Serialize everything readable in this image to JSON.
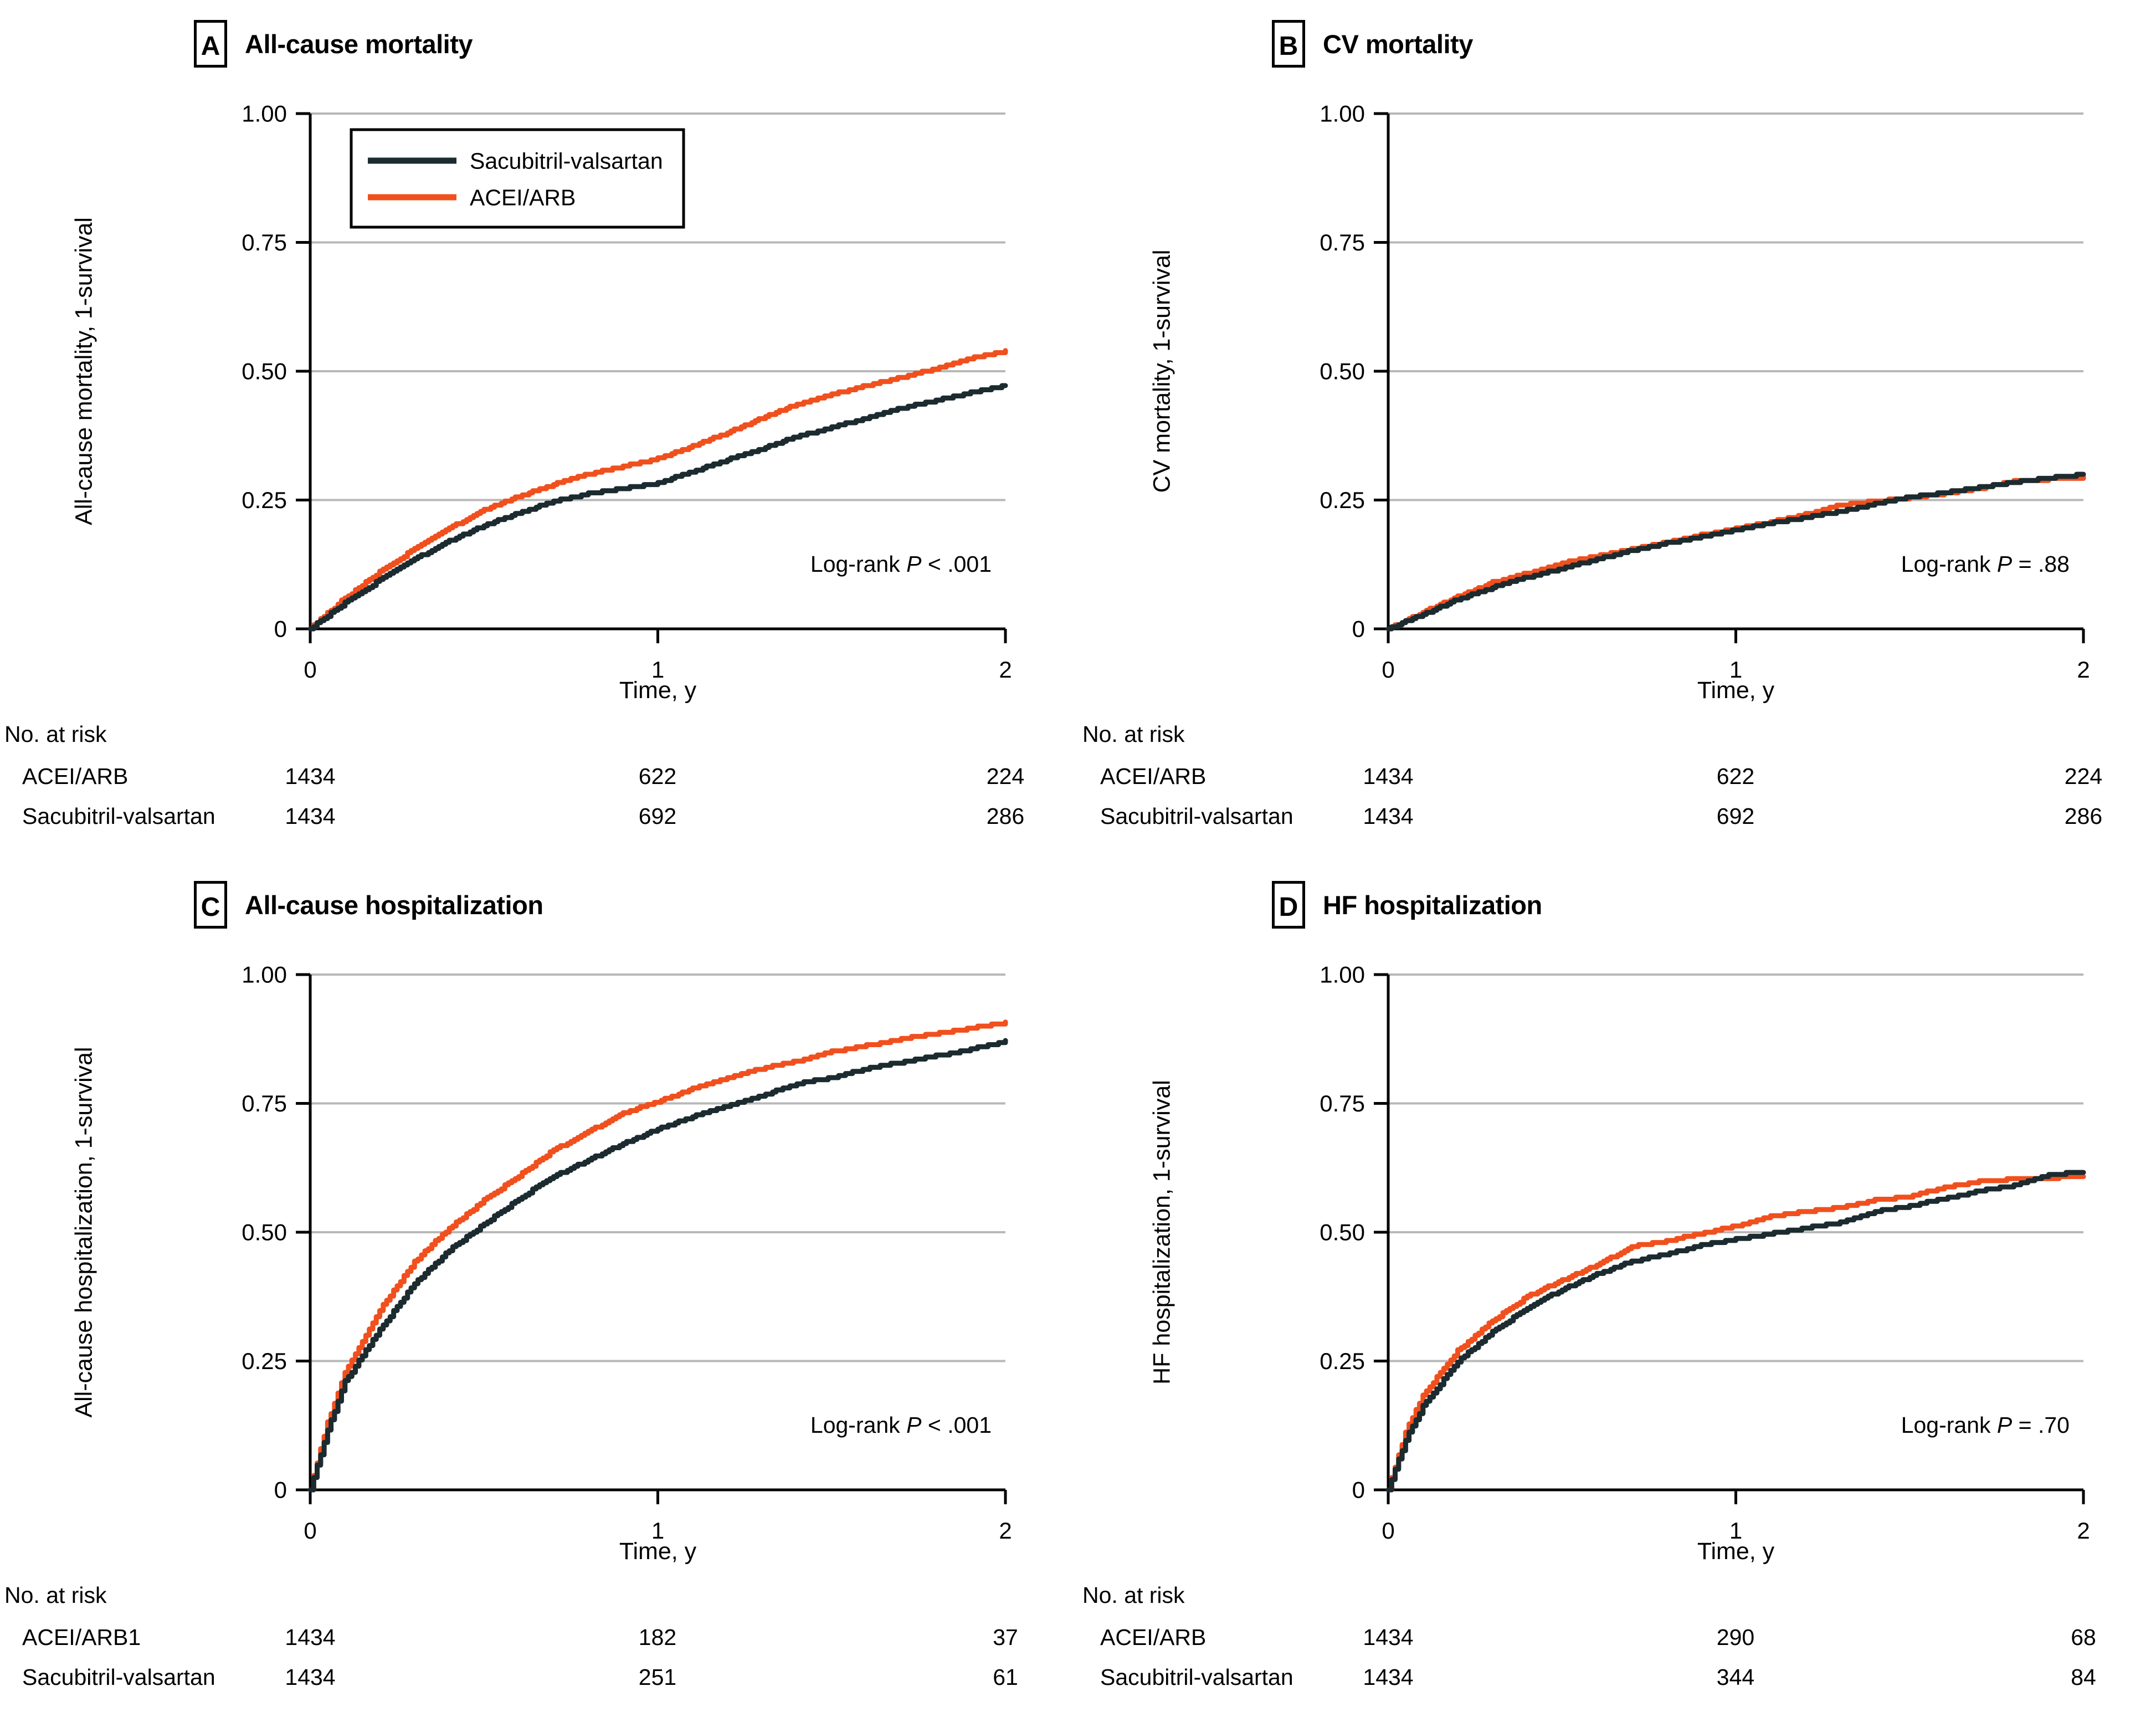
{
  "figure": {
    "background": "#ffffff",
    "colors": {
      "sacubitril": "#1b2b30",
      "acei_arb": "#f0501e",
      "grid": "#b8b8b8",
      "axis": "#000000"
    },
    "legend": {
      "items": [
        {
          "label": "Sacubitril-valsartan",
          "color": "sacubitril"
        },
        {
          "label": "ACEI/ARB",
          "color": "acei_arb"
        }
      ]
    }
  },
  "chart_data": [
    {
      "panel": "A",
      "title": "All-cause mortality",
      "type": "line",
      "xlabel": "Time, y",
      "ylabel": "All-cause mortality, 1-survival",
      "xlim": [
        0,
        2
      ],
      "ylim": [
        0,
        1
      ],
      "grid": true,
      "legend_visible": true,
      "legend_position": "top-left",
      "xticks": [
        {
          "v": 0,
          "label": "0"
        },
        {
          "v": 1,
          "label": "1"
        },
        {
          "v": 2,
          "label": "2"
        }
      ],
      "yticks": [
        {
          "v": 1,
          "label": "1.00"
        },
        {
          "v": 0.75,
          "label": "0.75"
        },
        {
          "v": 0.5,
          "label": "0.50"
        },
        {
          "v": 0.25,
          "label": "0.25"
        },
        {
          "v": 0,
          "label": "0"
        }
      ],
      "logrank": {
        "prefix": "Log-rank ",
        "p": "P",
        "suffix": " < .001"
      },
      "series": [
        {
          "name": "ACEI/ARB",
          "color": "acei_arb",
          "x": [
            0,
            0.1,
            0.2,
            0.3,
            0.4,
            0.5,
            0.6,
            0.7,
            0.8,
            0.9,
            1,
            1.1,
            1.2,
            1.3,
            1.4,
            1.5,
            1.6,
            1.7,
            1.8,
            1.9,
            2
          ],
          "y": [
            0,
            0.06,
            0.11,
            0.155,
            0.195,
            0.23,
            0.257,
            0.28,
            0.3,
            0.315,
            0.33,
            0.355,
            0.38,
            0.41,
            0.435,
            0.455,
            0.472,
            0.488,
            0.505,
            0.525,
            0.538
          ]
        },
        {
          "name": "Sacubitril-valsartan",
          "color": "sacubitril",
          "x": [
            0,
            0.1,
            0.2,
            0.3,
            0.4,
            0.5,
            0.6,
            0.7,
            0.8,
            0.9,
            1,
            1.1,
            1.2,
            1.3,
            1.4,
            1.5,
            1.6,
            1.7,
            1.8,
            1.9,
            2
          ],
          "y": [
            0,
            0.05,
            0.095,
            0.135,
            0.17,
            0.2,
            0.225,
            0.247,
            0.262,
            0.272,
            0.283,
            0.305,
            0.328,
            0.35,
            0.373,
            0.39,
            0.41,
            0.428,
            0.443,
            0.458,
            0.472
          ]
        }
      ],
      "at_risk": {
        "header": "No. at risk",
        "rows": [
          [
            "ACEI/ARB",
            "1434",
            "622",
            "224"
          ],
          [
            "Sacubitril-valsartan",
            "1434",
            "692",
            "286"
          ]
        ]
      }
    },
    {
      "panel": "B",
      "title": "CV mortality",
      "type": "line",
      "xlabel": "Time, y",
      "ylabel": "CV mortality, 1-survival",
      "xlim": [
        0,
        2
      ],
      "ylim": [
        0,
        1
      ],
      "grid": true,
      "legend_visible": false,
      "legend_position": "none",
      "xticks": [
        {
          "v": 0,
          "label": "0"
        },
        {
          "v": 1,
          "label": "1"
        },
        {
          "v": 2,
          "label": "2"
        }
      ],
      "yticks": [
        {
          "v": 1,
          "label": "1.00"
        },
        {
          "v": 0.75,
          "label": "0.75"
        },
        {
          "v": 0.5,
          "label": "0.50"
        },
        {
          "v": 0.25,
          "label": "0.25"
        },
        {
          "v": 0,
          "label": "0"
        }
      ],
      "logrank": {
        "prefix": "Log-rank ",
        "p": "P",
        "suffix": " = .88"
      },
      "series": [
        {
          "name": "ACEI/ARB",
          "color": "acei_arb",
          "x": [
            0,
            0.1,
            0.2,
            0.3,
            0.4,
            0.5,
            0.6,
            0.7,
            0.8,
            0.9,
            1,
            1.1,
            1.2,
            1.3,
            1.4,
            1.5,
            1.6,
            1.7,
            1.8,
            1.9,
            2
          ],
          "y": [
            0,
            0.032,
            0.062,
            0.09,
            0.108,
            0.127,
            0.142,
            0.155,
            0.168,
            0.182,
            0.195,
            0.207,
            0.222,
            0.24,
            0.248,
            0.254,
            0.262,
            0.272,
            0.287,
            0.29,
            0.294
          ]
        },
        {
          "name": "Sacubitril-valsartan",
          "color": "sacubitril",
          "x": [
            0,
            0.1,
            0.2,
            0.3,
            0.4,
            0.5,
            0.6,
            0.7,
            0.8,
            0.9,
            1,
            1.1,
            1.2,
            1.3,
            1.4,
            1.5,
            1.6,
            1.7,
            1.8,
            1.9,
            2
          ],
          "y": [
            0,
            0.028,
            0.057,
            0.08,
            0.1,
            0.117,
            0.135,
            0.152,
            0.166,
            0.178,
            0.192,
            0.205,
            0.216,
            0.228,
            0.242,
            0.256,
            0.264,
            0.274,
            0.285,
            0.293,
            0.3
          ]
        }
      ],
      "at_risk": {
        "header": "No. at risk",
        "rows": [
          [
            "ACEI/ARB",
            "1434",
            "622",
            "224"
          ],
          [
            "Sacubitril-valsartan",
            "1434",
            "692",
            "286"
          ]
        ]
      }
    },
    {
      "panel": "C",
      "title": "All-cause hospitalization",
      "type": "line",
      "xlabel": "Time, y",
      "ylabel": "All-cause hospitalization, 1-survival",
      "xlim": [
        0,
        2
      ],
      "ylim": [
        0,
        1
      ],
      "grid": true,
      "legend_visible": false,
      "legend_position": "none",
      "xticks": [
        {
          "v": 0,
          "label": "0"
        },
        {
          "v": 1,
          "label": "1"
        },
        {
          "v": 2,
          "label": "2"
        }
      ],
      "yticks": [
        {
          "v": 1,
          "label": "1.00"
        },
        {
          "v": 0.75,
          "label": "0.75"
        },
        {
          "v": 0.5,
          "label": "0.50"
        },
        {
          "v": 0.25,
          "label": "0.25"
        },
        {
          "v": 0,
          "label": "0"
        }
      ],
      "logrank": {
        "prefix": "Log-rank ",
        "p": "P",
        "suffix": " < .001"
      },
      "series": [
        {
          "name": "ACEI/ARB",
          "color": "acei_arb",
          "x": [
            0,
            0.05,
            0.1,
            0.2,
            0.3,
            0.4,
            0.5,
            0.6,
            0.7,
            0.8,
            0.9,
            1,
            1.1,
            1.2,
            1.3,
            1.4,
            1.5,
            1.6,
            1.7,
            1.8,
            1.9,
            2
          ],
          "y": [
            0,
            0.13,
            0.227,
            0.35,
            0.443,
            0.508,
            0.562,
            0.609,
            0.659,
            0.695,
            0.731,
            0.753,
            0.778,
            0.8,
            0.818,
            0.832,
            0.85,
            0.862,
            0.875,
            0.885,
            0.896,
            0.906
          ]
        },
        {
          "name": "Sacubitril-valsartan",
          "color": "sacubitril",
          "x": [
            0,
            0.05,
            0.1,
            0.2,
            0.3,
            0.4,
            0.5,
            0.6,
            0.7,
            0.8,
            0.9,
            1,
            1.1,
            1.2,
            1.3,
            1.4,
            1.5,
            1.6,
            1.7,
            1.8,
            1.9,
            2
          ],
          "y": [
            0,
            0.115,
            0.21,
            0.31,
            0.4,
            0.465,
            0.515,
            0.565,
            0.608,
            0.64,
            0.672,
            0.7,
            0.724,
            0.745,
            0.765,
            0.788,
            0.8,
            0.817,
            0.83,
            0.842,
            0.855,
            0.87
          ]
        }
      ],
      "at_risk": {
        "header": "No. at risk",
        "rows": [
          [
            "ACEI/ARB1",
            "1434",
            "182",
            "37"
          ],
          [
            "Sacubitril-valsartan",
            "1434",
            "251",
            "61"
          ]
        ]
      }
    },
    {
      "panel": "D",
      "title": "HF hospitalization",
      "type": "line",
      "xlabel": "Time, y",
      "ylabel": "HF hospitalization, 1-survival",
      "xlim": [
        0,
        2
      ],
      "ylim": [
        0,
        1
      ],
      "grid": true,
      "legend_visible": false,
      "legend_position": "none",
      "xticks": [
        {
          "v": 0,
          "label": "0"
        },
        {
          "v": 1,
          "label": "1"
        },
        {
          "v": 2,
          "label": "2"
        }
      ],
      "yticks": [
        {
          "v": 1,
          "label": "1.00"
        },
        {
          "v": 0.75,
          "label": "0.75"
        },
        {
          "v": 0.5,
          "label": "0.50"
        },
        {
          "v": 0.25,
          "label": "0.25"
        },
        {
          "v": 0,
          "label": "0"
        }
      ],
      "logrank": {
        "prefix": "Log-rank ",
        "p": "P",
        "suffix": " = .70"
      },
      "series": [
        {
          "name": "ACEI/ARB",
          "color": "acei_arb",
          "x": [
            0,
            0.05,
            0.1,
            0.2,
            0.3,
            0.4,
            0.5,
            0.6,
            0.7,
            0.8,
            0.9,
            1,
            1.1,
            1.2,
            1.3,
            1.4,
            1.5,
            1.6,
            1.7,
            1.8,
            1.9,
            2
          ],
          "y": [
            0,
            0.112,
            0.184,
            0.27,
            0.328,
            0.375,
            0.407,
            0.436,
            0.472,
            0.483,
            0.497,
            0.512,
            0.53,
            0.54,
            0.548,
            0.562,
            0.569,
            0.587,
            0.598,
            0.603,
            0.605,
            0.609
          ]
        },
        {
          "name": "Sacubitril-valsartan",
          "color": "sacubitril",
          "x": [
            0,
            0.05,
            0.1,
            0.2,
            0.3,
            0.4,
            0.5,
            0.6,
            0.7,
            0.8,
            0.9,
            1,
            1.1,
            1.2,
            1.3,
            1.4,
            1.5,
            1.6,
            1.7,
            1.8,
            1.9,
            2
          ],
          "y": [
            0,
            0.097,
            0.162,
            0.249,
            0.306,
            0.353,
            0.389,
            0.418,
            0.443,
            0.457,
            0.475,
            0.486,
            0.497,
            0.508,
            0.519,
            0.54,
            0.551,
            0.565,
            0.58,
            0.59,
            0.612,
            0.616
          ]
        }
      ],
      "at_risk": {
        "header": "No. at risk",
        "rows": [
          [
            "ACEI/ARB",
            "1434",
            "290",
            "68"
          ],
          [
            "Sacubitril-valsartan",
            "1434",
            "344",
            "84"
          ]
        ]
      }
    }
  ]
}
